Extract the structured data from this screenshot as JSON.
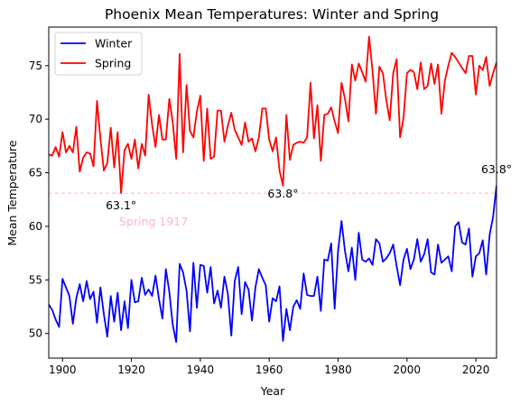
{
  "chart_data": {
    "type": "line",
    "title": "Phoenix Mean Temperatures: Winter and Spring",
    "xlabel": "Year",
    "ylabel": "Mean Temperature",
    "xlim": [
      1896,
      2026
    ],
    "ylim": [
      47.7,
      78.6
    ],
    "xticks": [
      1900,
      1920,
      1940,
      1960,
      1980,
      2000,
      2020
    ],
    "yticks": [
      50,
      55,
      60,
      65,
      70,
      75
    ],
    "grid": false,
    "legend_position": "top-left",
    "x_start": 1896,
    "series": [
      {
        "name": "Winter",
        "color": "#0000ff",
        "values": [
          52.7,
          52.2,
          51.3,
          50.6,
          55.1,
          54.3,
          53.5,
          50.9,
          53.3,
          54.6,
          53.0,
          54.9,
          53.2,
          53.9,
          51.0,
          54.3,
          51.8,
          49.7,
          53.5,
          51.1,
          53.8,
          50.3,
          53.0,
          50.5,
          55.0,
          52.9,
          53.0,
          55.2,
          53.6,
          54.1,
          53.5,
          55.4,
          53.2,
          51.4,
          56.0,
          53.9,
          50.8,
          49.2,
          56.5,
          55.7,
          54.0,
          50.2,
          56.6,
          52.4,
          56.4,
          56.3,
          53.8,
          56.2,
          52.8,
          54.0,
          52.4,
          55.3,
          53.7,
          49.8,
          54.9,
          56.2,
          51.8,
          54.8,
          54.1,
          51.2,
          54.3,
          56.0,
          55.2,
          54.5,
          51.1,
          53.3,
          53.0,
          54.4,
          49.3,
          52.3,
          50.3,
          52.5,
          53.1,
          52.3,
          55.6,
          53.6,
          53.5,
          53.5,
          55.3,
          52.1,
          56.9,
          56.8,
          58.4,
          52.3,
          57.7,
          60.5,
          57.7,
          55.8,
          58.0,
          55.0,
          59.4,
          56.9,
          56.7,
          57.0,
          56.4,
          58.8,
          58.4,
          56.7,
          57.0,
          57.5,
          58.3,
          56.3,
          54.5,
          56.9,
          57.9,
          56.0,
          56.9,
          58.8,
          56.7,
          57.4,
          58.8,
          55.7,
          55.5,
          58.3,
          56.6,
          56.9,
          57.2,
          55.8,
          60.0,
          60.4,
          58.5,
          58.3,
          59.8,
          55.3,
          57.2,
          57.5,
          58.7,
          55.5,
          59.2,
          60.9,
          63.8
        ]
      },
      {
        "name": "Spring",
        "color": "#ff0000",
        "values": [
          66.7,
          66.6,
          67.4,
          66.5,
          68.8,
          66.9,
          67.5,
          66.9,
          69.3,
          65.1,
          66.4,
          66.9,
          66.8,
          65.6,
          71.7,
          68.2,
          65.2,
          65.9,
          69.2,
          65.5,
          68.8,
          63.1,
          67.1,
          67.7,
          66.3,
          68.1,
          65.4,
          67.7,
          66.6,
          72.3,
          69.5,
          67.4,
          70.4,
          68.1,
          68.1,
          71.9,
          69.7,
          66.3,
          76.1,
          66.9,
          73.2,
          68.9,
          68.3,
          70.7,
          72.2,
          66.1,
          71.0,
          66.3,
          66.5,
          70.8,
          70.8,
          67.9,
          69.4,
          70.6,
          69.0,
          68.3,
          67.6,
          69.7,
          67.9,
          68.2,
          67.0,
          68.3,
          71.0,
          71.0,
          68.1,
          67.0,
          68.3,
          65.2,
          63.8,
          70.4,
          66.2,
          67.6,
          67.8,
          67.9,
          67.8,
          68.3,
          73.4,
          68.2,
          71.3,
          66.1,
          70.4,
          70.5,
          71.1,
          69.8,
          68.7,
          73.4,
          71.9,
          69.8,
          75.1,
          73.6,
          75.2,
          74.4,
          73.5,
          77.7,
          74.5,
          70.5,
          74.9,
          74.3,
          71.8,
          69.9,
          74.3,
          75.6,
          68.3,
          70.1,
          74.3,
          74.6,
          74.4,
          72.8,
          75.3,
          72.8,
          73.1,
          75.2,
          73.3,
          75.1,
          70.5,
          73.6,
          75.0,
          76.2,
          75.8,
          75.3,
          74.8,
          74.3,
          75.9,
          75.9,
          72.3,
          75.0,
          74.6,
          75.8,
          73.1,
          74.3,
          75.3
        ]
      }
    ],
    "reference_line": {
      "y": 63.1,
      "color": "#ffb6c1",
      "style": "dashed"
    },
    "annotations": [
      {
        "text": "63.1°",
        "x": 1917,
        "y": 63.1,
        "color": "#000000"
      },
      {
        "text": "63.8°",
        "x": 1964,
        "y": 63.8,
        "color": "#000000"
      },
      {
        "text": "63.8°",
        "x": 2026,
        "y": 63.8,
        "color": "#000000"
      },
      {
        "text": "Spring 1917",
        "x": 1917,
        "y": 63.1,
        "color": "#ffb6c1"
      }
    ]
  }
}
